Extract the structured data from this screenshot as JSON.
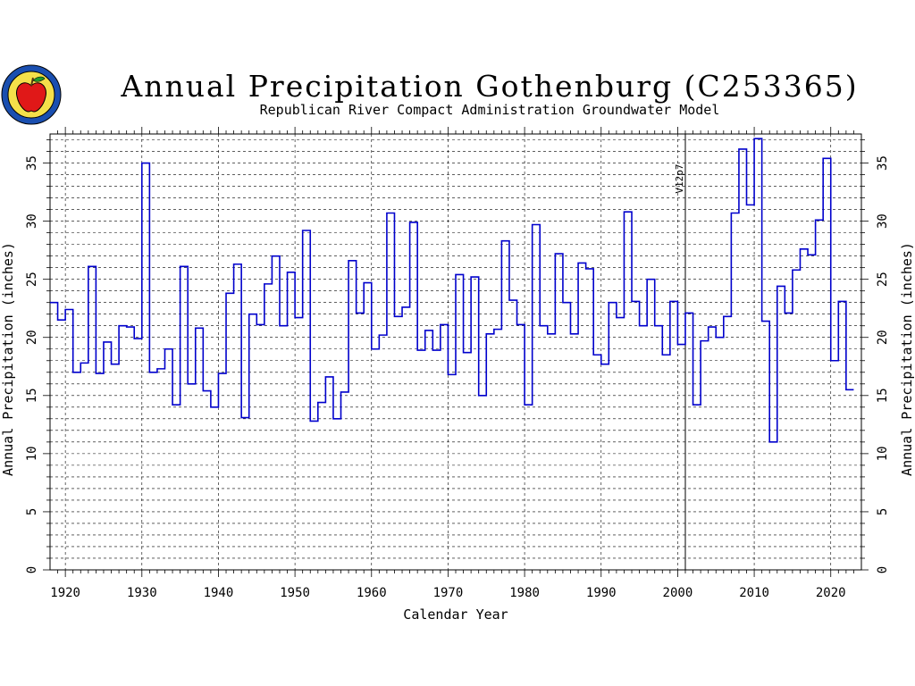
{
  "header": {
    "title": "Annual Precipitation Gothenburg (C253365)",
    "subtitle": "Republican River Compact Administration Groundwater Model",
    "logo_icon": "apple-seal-icon"
  },
  "chart_data": {
    "type": "line",
    "step": true,
    "title": "Annual Precipitation Gothenburg (C253365)",
    "subtitle": "Republican River Compact Administration Groundwater Model",
    "xlabel": "Calendar Year",
    "ylabel": "Annual Precipitation (inches)",
    "xlim": [
      1918,
      2024
    ],
    "ylim": [
      0,
      37.5
    ],
    "x_ticks": [
      1920,
      1930,
      1940,
      1950,
      1960,
      1970,
      1980,
      1990,
      2000,
      2010,
      2020
    ],
    "y_ticks": [
      0,
      5,
      10,
      15,
      20,
      25,
      30,
      35
    ],
    "grid": true,
    "series_color": "#0000cc",
    "marker": {
      "x": 2001,
      "label": "V12p7"
    },
    "series": [
      {
        "x": [
          1918,
          1919,
          1920,
          1921,
          1922,
          1923,
          1924,
          1925,
          1926,
          1927,
          1928,
          1929,
          1930,
          1931,
          1932,
          1933,
          1934,
          1935,
          1936,
          1937,
          1938,
          1939,
          1940,
          1941,
          1942,
          1943,
          1944,
          1945,
          1946,
          1947,
          1948,
          1949,
          1950,
          1951,
          1952,
          1953,
          1954,
          1955,
          1956,
          1957,
          1958,
          1959,
          1960,
          1961,
          1962,
          1963,
          1964,
          1965,
          1966,
          1967,
          1968,
          1969,
          1970,
          1971,
          1972,
          1973,
          1974,
          1975,
          1976,
          1977,
          1978,
          1979,
          1980,
          1981,
          1982,
          1983,
          1984,
          1985,
          1986,
          1987,
          1988,
          1989,
          1990,
          1991,
          1992,
          1993,
          1994,
          1995,
          1996,
          1997,
          1998,
          1999,
          2000,
          2001,
          2002,
          2003,
          2004,
          2005,
          2006,
          2007,
          2008,
          2009,
          2010,
          2011,
          2012,
          2013,
          2014,
          2015,
          2016,
          2017,
          2018,
          2019,
          2020,
          2021,
          2022
        ],
        "values": [
          23.0,
          21.5,
          22.4,
          17.0,
          17.8,
          26.1,
          16.9,
          19.6,
          17.7,
          21.0,
          20.9,
          19.9,
          35.0,
          17.0,
          17.3,
          19.0,
          14.2,
          26.1,
          16.0,
          20.8,
          15.4,
          14.0,
          16.9,
          23.8,
          26.3,
          13.1,
          22.0,
          21.1,
          24.6,
          27.0,
          21.0,
          25.6,
          21.7,
          29.2,
          12.8,
          14.4,
          16.6,
          13.0,
          15.3,
          26.6,
          22.1,
          24.7,
          19.0,
          20.2,
          30.7,
          21.8,
          22.6,
          29.9,
          18.9,
          20.6,
          18.9,
          21.1,
          16.8,
          25.4,
          18.7,
          25.2,
          15.0,
          20.3,
          20.7,
          28.3,
          23.2,
          21.1,
          14.2,
          29.7,
          21.0,
          20.3,
          27.2,
          23.0,
          20.3,
          26.4,
          25.9,
          18.5,
          17.7,
          23.0,
          21.7,
          30.8,
          23.1,
          21.0,
          25.0,
          21.0,
          18.5,
          23.1,
          19.4,
          22.1,
          14.2,
          19.7,
          20.9,
          20.0,
          21.8,
          30.7,
          36.2,
          31.4,
          37.1,
          21.4,
          11.0,
          24.4,
          22.1,
          25.8,
          27.6,
          27.1,
          30.1,
          35.4,
          18.0,
          23.1,
          15.5
        ]
      }
    ]
  }
}
